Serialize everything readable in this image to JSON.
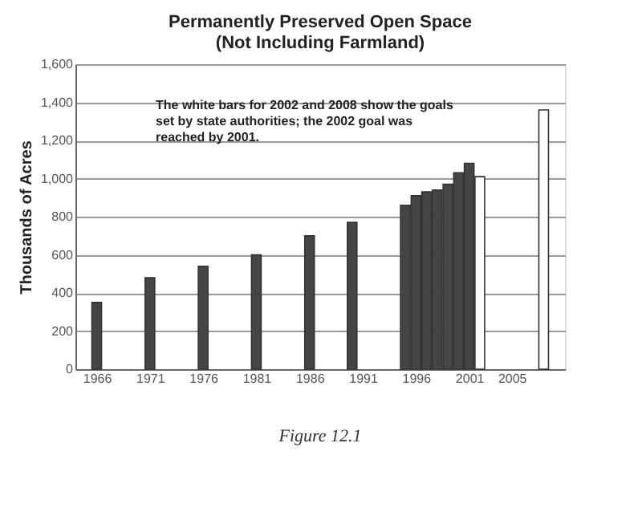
{
  "chart_data": {
    "type": "bar",
    "title": "Permanently Preserved Open Space\n(Not Including Farmland)",
    "ylabel": "Thousands of Acres",
    "series": [
      {
        "color": "#454545",
        "x": [
          1966,
          1971,
          1976,
          1981,
          1986,
          1990,
          1995,
          1996,
          1997,
          1998,
          1999,
          2000,
          2001
        ],
        "values": [
          350,
          480,
          540,
          600,
          700,
          770,
          860,
          910,
          930,
          940,
          970,
          1030,
          1080
        ]
      },
      {
        "color": "#ffffff",
        "x": [
          2002,
          2008
        ],
        "values": [
          1010,
          1360
        ]
      }
    ],
    "xlim": [
      1964,
      2010
    ],
    "xticks": [
      1966,
      1971,
      1976,
      1981,
      1986,
      1991,
      1996,
      2001,
      2005
    ],
    "ylim": [
      0,
      1600
    ],
    "yticks": [
      0,
      200,
      400,
      600,
      800,
      {
        "value": 1000,
        "label": "1,000"
      },
      {
        "value": 1200,
        "label": "1,200"
      },
      {
        "value": 1400,
        "label": "1,400"
      },
      {
        "value": 1600,
        "label": "1,600"
      }
    ],
    "grid": "y",
    "annotations": [
      "The white bars for 2002 and 2008 show the goals set by state authorities; the 2002 goal was reached by 2001.",
      "Figure 12.1"
    ]
  }
}
